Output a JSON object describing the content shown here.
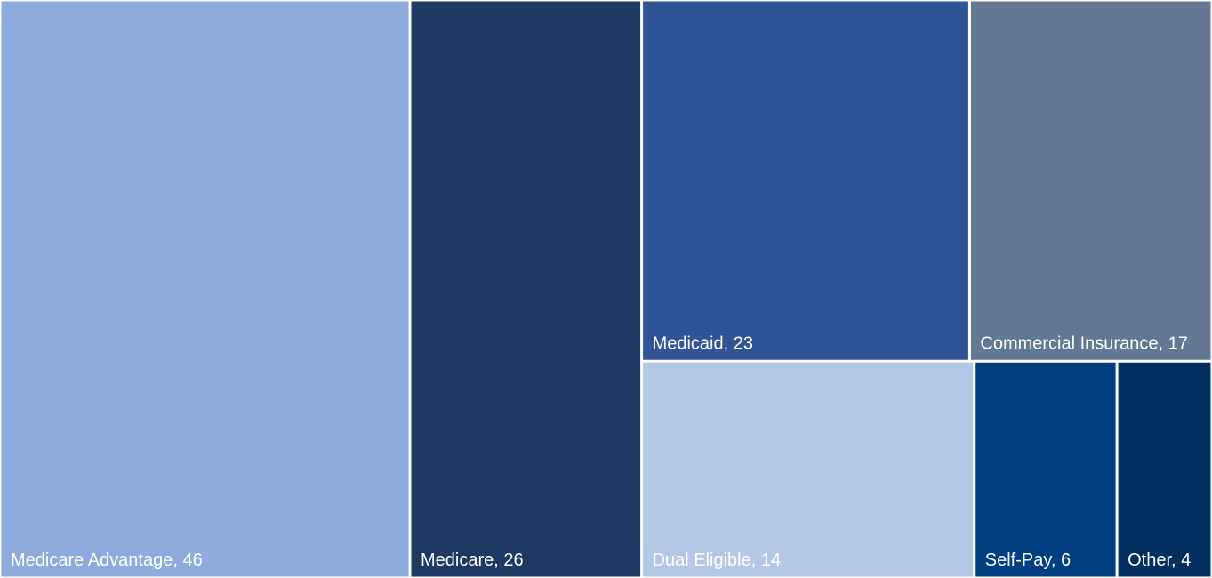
{
  "chart_data": {
    "type": "treemap",
    "categories": [
      "Medicare Advantage",
      "Medicare",
      "Medicaid",
      "Commercial Insurance",
      "Dual Eligible",
      "Self-Pay",
      "Other"
    ],
    "values": [
      46,
      26,
      23,
      17,
      14,
      6,
      4
    ],
    "value_labels": [
      "Medicare Advantage, 46",
      "Medicare, 26",
      "Medicaid, 23",
      "Commercial Insurance, 17",
      "Dual Eligible, 14",
      "Self-Pay, 6",
      "Other, 4"
    ],
    "colors": [
      "#8faadc",
      "#203864",
      "#2f5597",
      "#647793",
      "#b4c7e7",
      "#003f7f",
      "#002f60"
    ]
  }
}
